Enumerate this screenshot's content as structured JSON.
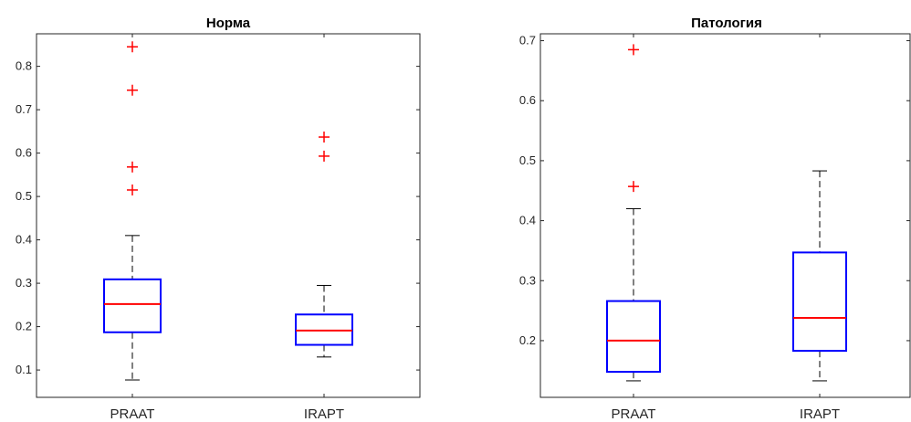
{
  "chart_data": [
    {
      "type": "box",
      "title": "Норма",
      "xlabel": "",
      "ylabel": "",
      "categories": [
        "PRAAT",
        "IRAPT"
      ],
      "ylim": [
        0.037,
        0.875
      ],
      "yticks": [
        "0.1",
        "0.2",
        "0.3",
        "0.4",
        "0.5",
        "0.6",
        "0.7",
        "0.8"
      ],
      "boxes": [
        {
          "name": "PRAAT",
          "whisker_low": 0.077,
          "q1": 0.187,
          "median": 0.252,
          "q3": 0.309,
          "whisker_high": 0.41,
          "outliers": [
            0.515,
            0.568,
            0.745,
            0.845
          ]
        },
        {
          "name": "IRAPT",
          "whisker_low": 0.13,
          "q1": 0.158,
          "median": 0.191,
          "q3": 0.228,
          "whisker_high": 0.295,
          "outliers": [
            0.593,
            0.637
          ]
        }
      ],
      "box_color": "#0000ff",
      "median_color": "#ff0000",
      "outlier_color": "#ff0000",
      "grid": false
    },
    {
      "type": "box",
      "title": "Патология",
      "xlabel": "",
      "ylabel": "",
      "categories": [
        "PRAAT",
        "IRAPT"
      ],
      "ylim": [
        0.1055,
        0.7115
      ],
      "yticks": [
        "0.2",
        "0.3",
        "0.4",
        "0.5",
        "0.6",
        "0.7"
      ],
      "boxes": [
        {
          "name": "PRAAT",
          "whisker_low": 0.133,
          "q1": 0.148,
          "median": 0.2,
          "q3": 0.266,
          "whisker_high": 0.42,
          "outliers": [
            0.457,
            0.685
          ]
        },
        {
          "name": "IRAPT",
          "whisker_low": 0.133,
          "q1": 0.183,
          "median": 0.238,
          "q3": 0.347,
          "whisker_high": 0.483,
          "outliers": []
        }
      ],
      "box_color": "#0000ff",
      "median_color": "#ff0000",
      "outlier_color": "#ff0000",
      "grid": false
    }
  ]
}
